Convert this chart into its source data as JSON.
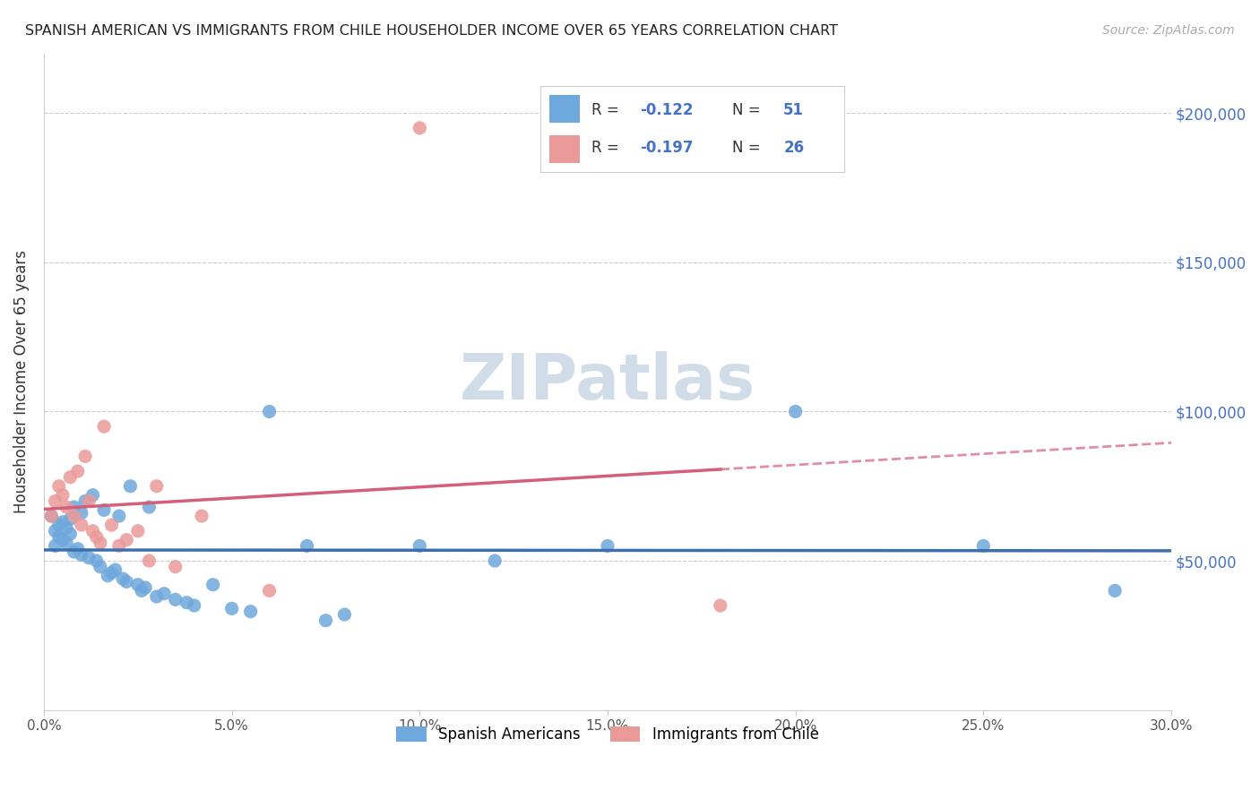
{
  "title": "SPANISH AMERICAN VS IMMIGRANTS FROM CHILE HOUSEHOLDER INCOME OVER 65 YEARS CORRELATION CHART",
  "source": "Source: ZipAtlas.com",
  "ylabel": "Householder Income Over 65 years",
  "xlim": [
    0.0,
    0.3
  ],
  "ylim": [
    0,
    220000
  ],
  "legend1_label": "Spanish Americans",
  "legend2_label": "Immigrants from Chile",
  "R1": -0.122,
  "N1": 51,
  "R2": -0.197,
  "N2": 26,
  "blue_color": "#6fa8dc",
  "pink_color": "#ea9999",
  "blue_line_color": "#3d6fad",
  "pink_line_color": "#d45f7a",
  "axis_label_color": "#4472c4",
  "watermark_color": "#d0dce8",
  "background_color": "#ffffff",
  "blue_scatter_x": [
    0.002,
    0.003,
    0.003,
    0.004,
    0.004,
    0.005,
    0.005,
    0.006,
    0.006,
    0.007,
    0.007,
    0.008,
    0.008,
    0.009,
    0.01,
    0.01,
    0.011,
    0.012,
    0.013,
    0.014,
    0.015,
    0.016,
    0.017,
    0.018,
    0.019,
    0.02,
    0.021,
    0.022,
    0.023,
    0.025,
    0.026,
    0.027,
    0.028,
    0.03,
    0.032,
    0.035,
    0.038,
    0.04,
    0.045,
    0.05,
    0.055,
    0.06,
    0.07,
    0.075,
    0.08,
    0.1,
    0.12,
    0.15,
    0.2,
    0.25,
    0.285
  ],
  "blue_scatter_y": [
    65000,
    55000,
    60000,
    58000,
    62000,
    57000,
    63000,
    56000,
    61000,
    59000,
    64000,
    53000,
    68000,
    54000,
    66000,
    52000,
    70000,
    51000,
    72000,
    50000,
    48000,
    67000,
    45000,
    46000,
    47000,
    65000,
    44000,
    43000,
    75000,
    42000,
    40000,
    41000,
    68000,
    38000,
    39000,
    37000,
    36000,
    35000,
    42000,
    34000,
    33000,
    100000,
    55000,
    30000,
    32000,
    55000,
    50000,
    55000,
    100000,
    55000,
    40000
  ],
  "pink_scatter_x": [
    0.002,
    0.003,
    0.004,
    0.005,
    0.006,
    0.007,
    0.008,
    0.009,
    0.01,
    0.011,
    0.012,
    0.013,
    0.014,
    0.015,
    0.016,
    0.018,
    0.02,
    0.022,
    0.025,
    0.028,
    0.03,
    0.035,
    0.042,
    0.06,
    0.1,
    0.18
  ],
  "pink_scatter_y": [
    65000,
    70000,
    75000,
    72000,
    68000,
    78000,
    65000,
    80000,
    62000,
    85000,
    70000,
    60000,
    58000,
    56000,
    95000,
    62000,
    55000,
    57000,
    60000,
    50000,
    75000,
    48000,
    65000,
    40000,
    195000,
    35000
  ]
}
